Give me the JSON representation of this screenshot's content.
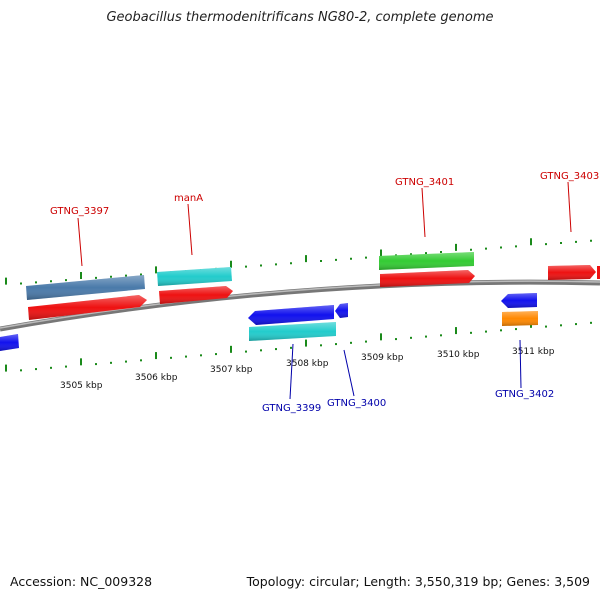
{
  "title": "Geobacillus thermodenitrificans NG80-2, complete genome",
  "footer": {
    "accession": "Accession: NC_009328",
    "topology": "Topology: circular; Length: 3,550,319 bp; Genes: 3,509"
  },
  "colors": {
    "backbone": "#888888",
    "tick": "#1a8a1a",
    "label_upper": "#cc0000",
    "label_lower": "#0000aa",
    "red": "#ee1111",
    "blue": "#1111ee",
    "cyan": "#22cccc",
    "steelblue": "#4a7aaa",
    "green": "#33cc33",
    "orange": "#ff8800"
  },
  "scale": {
    "unit": "kbp",
    "labels": [
      "3505 kbp",
      "3506 kbp",
      "3507 kbp",
      "3508 kbp",
      "3509 kbp",
      "3510 kbp",
      "3511 kbp"
    ]
  },
  "gene_labels": [
    {
      "id": "GTNG_3397",
      "text": "GTNG_3397",
      "strand": "upper"
    },
    {
      "id": "manA",
      "text": "manA",
      "strand": "upper"
    },
    {
      "id": "GTNG_3401",
      "text": "GTNG_3401",
      "strand": "upper"
    },
    {
      "id": "GTNG_3403",
      "text": "GTNG_3403",
      "strand": "upper"
    },
    {
      "id": "GTNG_3399",
      "text": "GTNG_3399",
      "strand": "lower"
    },
    {
      "id": "GTNG_3400",
      "text": "GTNG_3400",
      "strand": "lower"
    },
    {
      "id": "GTNG_3402",
      "text": "GTNG_3402",
      "strand": "lower"
    }
  ]
}
